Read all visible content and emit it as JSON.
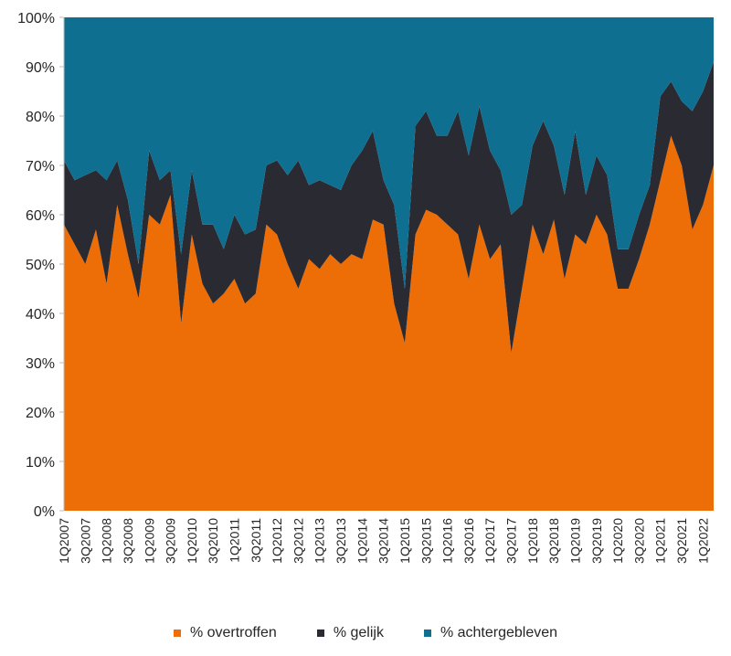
{
  "chart_data": {
    "type": "area",
    "stacked": true,
    "x": [
      "1Q2007",
      "2Q2007",
      "3Q2007",
      "4Q2007",
      "1Q2008",
      "2Q2008",
      "3Q2008",
      "4Q2008",
      "1Q2009",
      "2Q2009",
      "3Q2009",
      "4Q2009",
      "1Q2010",
      "2Q2010",
      "3Q2010",
      "4Q2010",
      "1Q2011",
      "2Q2011",
      "3Q2011",
      "4Q2011",
      "1Q2012",
      "2Q2012",
      "3Q2012",
      "4Q2012",
      "1Q2013",
      "2Q2013",
      "3Q2013",
      "4Q2013",
      "1Q2014",
      "2Q2014",
      "3Q2014",
      "4Q2014",
      "1Q2015",
      "2Q2015",
      "3Q2015",
      "4Q2015",
      "1Q2016",
      "2Q2016",
      "3Q2016",
      "4Q2016",
      "1Q2017",
      "2Q2017",
      "3Q2017",
      "4Q2017",
      "1Q2018",
      "2Q2018",
      "3Q2018",
      "4Q2018",
      "1Q2019",
      "2Q2019",
      "3Q2019",
      "4Q2019",
      "1Q2020",
      "2Q2020",
      "3Q2020",
      "4Q2020",
      "1Q2021",
      "2Q2021",
      "3Q2021",
      "4Q2021",
      "1Q2022",
      "2Q2022"
    ],
    "x_tick_labels": [
      "1Q2007",
      "3Q2007",
      "1Q2008",
      "3Q2008",
      "1Q2009",
      "3Q2009",
      "1Q2010",
      "3Q2010",
      "1Q2011",
      "3Q2011",
      "1Q2012",
      "3Q2012",
      "1Q2013",
      "3Q2013",
      "1Q2014",
      "3Q2014",
      "1Q2015",
      "3Q2015",
      "1Q2016",
      "3Q2016",
      "1Q2017",
      "3Q2017",
      "1Q2018",
      "3Q2018",
      "1Q2019",
      "3Q2019",
      "1Q2020",
      "3Q2020",
      "1Q2021",
      "3Q2021",
      "1Q2022"
    ],
    "y_tick_labels": [
      "0%",
      "10%",
      "20%",
      "30%",
      "40%",
      "50%",
      "60%",
      "70%",
      "80%",
      "90%",
      "100%"
    ],
    "ylim": [
      0,
      100
    ],
    "series": [
      {
        "name": "% overtroffen",
        "color": "#ed6d07",
        "values": [
          58,
          54,
          50,
          57,
          46,
          62,
          52,
          43,
          60,
          58,
          64,
          38,
          56,
          46,
          42,
          44,
          47,
          42,
          44,
          58,
          56,
          50,
          45,
          51,
          49,
          52,
          50,
          52,
          51,
          59,
          58,
          42,
          34,
          56,
          61,
          60,
          58,
          56,
          47,
          58,
          51,
          54,
          32,
          45,
          58,
          52,
          59,
          47,
          56,
          54,
          60,
          56,
          45,
          45,
          51,
          58,
          67,
          76,
          70,
          57,
          62,
          70
        ]
      },
      {
        "name": "% gelijk",
        "color": "#2a2a33",
        "values": [
          13,
          13,
          18,
          12,
          21,
          9,
          11,
          7,
          13,
          9,
          5,
          14,
          13,
          12,
          16,
          9,
          13,
          14,
          13,
          12,
          15,
          18,
          26,
          15,
          18,
          14,
          15,
          18,
          22,
          18,
          9,
          20,
          11,
          22,
          20,
          16,
          18,
          25,
          25,
          24,
          22,
          15,
          28,
          17,
          16,
          27,
          15,
          17,
          21,
          10,
          12,
          12,
          8,
          8,
          9,
          8,
          17,
          11,
          13,
          24,
          23,
          21
        ]
      },
      {
        "name": "% achtergebleven",
        "color": "#0f6f91",
        "values": [
          29,
          33,
          32,
          31,
          33,
          29,
          37,
          50,
          27,
          33,
          31,
          48,
          31,
          42,
          42,
          47,
          40,
          44,
          43,
          30,
          29,
          32,
          29,
          34,
          33,
          34,
          35,
          30,
          27,
          23,
          33,
          38,
          55,
          22,
          19,
          24,
          24,
          19,
          28,
          18,
          27,
          31,
          40,
          38,
          26,
          21,
          26,
          36,
          23,
          36,
          28,
          32,
          47,
          47,
          40,
          34,
          16,
          13,
          17,
          19,
          15,
          9
        ]
      }
    ],
    "legend_position": "bottom",
    "grid": false
  }
}
